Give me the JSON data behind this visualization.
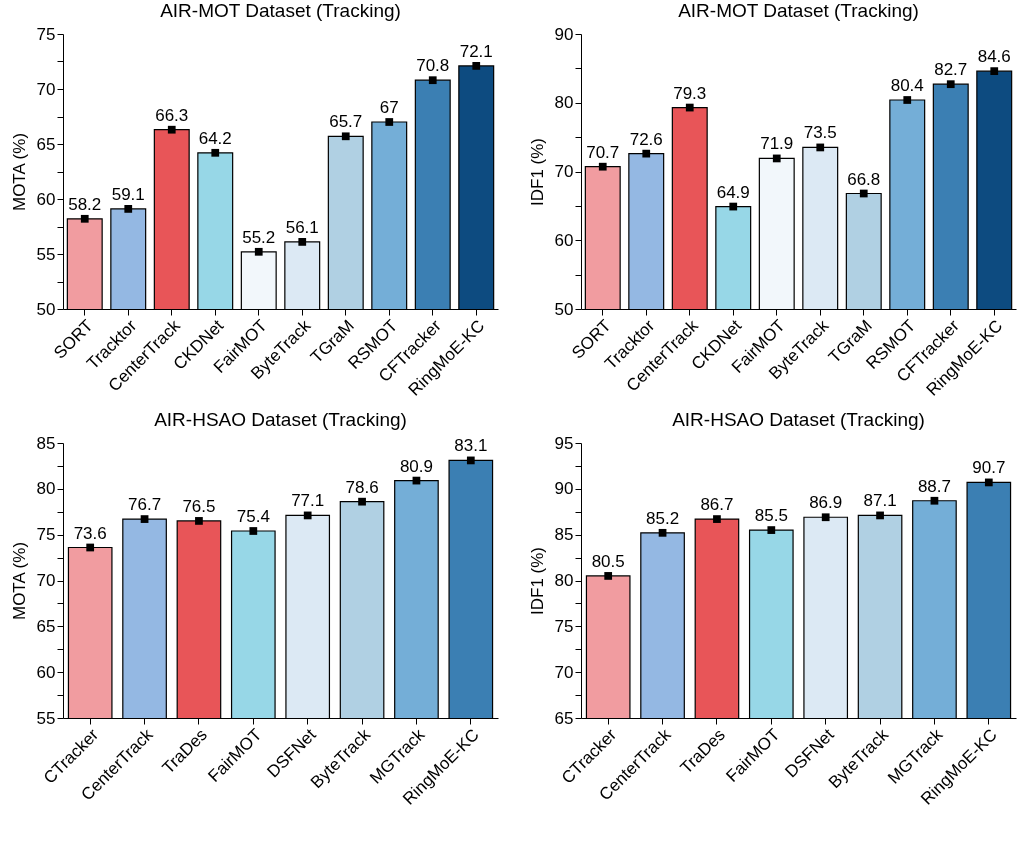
{
  "chart_data": [
    {
      "type": "bar",
      "title": "AIR-MOT Dataset (Tracking)",
      "ylabel": "MOTA (%)",
      "categories": [
        "SORT",
        "Tracktor",
        "CenterTrack",
        "CKDNet",
        "FairMOT",
        "ByteTrack",
        "TGraM",
        "RSMOT",
        "CFTracker",
        "RingMoE-KC"
      ],
      "series": [
        {
          "type": "bar",
          "colors": [
            "#f19ca0",
            "#94b8e3",
            "#e85558",
            "#97d7e7",
            "#f2f7fb",
            "#dce9f4",
            "#b0d0e3",
            "#74aed7",
            "#3b7fb3",
            "#0d4b80"
          ],
          "values": [
            58.2,
            59.1,
            66.3,
            64.2,
            55.2,
            56.1,
            65.7,
            67,
            70.8,
            72.1
          ],
          "value_labels": [
            "58.2",
            "59.1",
            "66.3",
            "64.2",
            "55.2",
            "56.1",
            "65.7",
            "67",
            "70.8",
            "72.1"
          ]
        },
        {
          "type": "scatter",
          "marker": "square",
          "color": "#000000",
          "x": [
            "SORT",
            "Tracktor",
            "CenterTrack",
            "CKDNet",
            "FairMOT",
            "ByteTrack",
            "TGraM",
            "RSMOT",
            "CFTracker",
            "RingMoE-KC"
          ],
          "values": [
            58.2,
            59.1,
            66.3,
            64.2,
            55.2,
            56.1,
            65.7,
            67,
            70.8,
            72.1
          ]
        }
      ],
      "ylim": [
        50,
        75
      ],
      "yticks": [
        50,
        {
          "value": 52.5,
          "label": null
        },
        55,
        {
          "value": 57.5,
          "label": null
        },
        60,
        {
          "value": 62.5,
          "label": null
        },
        65,
        {
          "value": 67.5,
          "label": null
        },
        70,
        {
          "value": 72.5,
          "label": null
        },
        75
      ]
    },
    {
      "type": "bar",
      "title": "AIR-MOT Dataset (Tracking)",
      "ylabel": "IDF1 (%)",
      "categories": [
        "SORT",
        "Tracktor",
        "CenterTrack",
        "CKDNet",
        "FairMOT",
        "ByteTrack",
        "TGraM",
        "RSMOT",
        "CFTracker",
        "RingMoE-KC"
      ],
      "series": [
        {
          "type": "bar",
          "colors": [
            "#f19ca0",
            "#94b8e3",
            "#e85558",
            "#97d7e7",
            "#f2f7fb",
            "#dce9f4",
            "#b0d0e3",
            "#74aed7",
            "#3b7fb3",
            "#0d4b80"
          ],
          "values": [
            70.7,
            72.6,
            79.3,
            64.9,
            71.9,
            73.5,
            66.8,
            80.4,
            82.7,
            84.6
          ],
          "value_labels": [
            "70.7",
            "72.6",
            "79.3",
            "64.9",
            "71.9",
            "73.5",
            "66.8",
            "80.4",
            "82.7",
            "84.6"
          ]
        },
        {
          "type": "scatter",
          "marker": "square",
          "color": "#000000",
          "x": [
            "SORT",
            "Tracktor",
            "CenterTrack",
            "CKDNet",
            "FairMOT",
            "ByteTrack",
            "TGraM",
            "RSMOT",
            "CFTracker",
            "RingMoE-KC"
          ],
          "values": [
            70.7,
            72.6,
            79.3,
            64.9,
            71.9,
            73.5,
            66.8,
            80.4,
            82.7,
            84.6
          ]
        }
      ],
      "ylim": [
        50,
        90
      ],
      "yticks": [
        50,
        {
          "value": 55,
          "label": null
        },
        60,
        {
          "value": 65,
          "label": null
        },
        70,
        {
          "value": 75,
          "label": null
        },
        80,
        {
          "value": 85,
          "label": null
        },
        90
      ]
    },
    {
      "type": "bar",
      "title": "AIR-HSAO Dataset (Tracking)",
      "ylabel": "MOTA (%)",
      "categories": [
        "CTracker",
        "CenterTrack",
        "TraDes",
        "FairMOT",
        "DSFNet",
        "ByteTrack",
        "MGTrack",
        "RingMoE-KC"
      ],
      "series": [
        {
          "type": "bar",
          "colors": [
            "#f19ca0",
            "#94b8e3",
            "#e85558",
            "#97d7e7",
            "#dce9f4",
            "#b0d0e3",
            "#74aed7",
            "#3b7fb3"
          ],
          "values": [
            73.6,
            76.7,
            76.5,
            75.4,
            77.1,
            78.6,
            80.9,
            83.1
          ],
          "value_labels": [
            "73.6",
            "76.7",
            "76.5",
            "75.4",
            "77.1",
            "78.6",
            "80.9",
            "83.1"
          ]
        },
        {
          "type": "scatter",
          "marker": "square",
          "color": "#000000",
          "x": [
            "CTracker",
            "CenterTrack",
            "TraDes",
            "FairMOT",
            "DSFNet",
            "ByteTrack",
            "MGTrack",
            "RingMoE-KC"
          ],
          "values": [
            73.6,
            76.7,
            76.5,
            75.4,
            77.1,
            78.6,
            80.9,
            83.1
          ]
        }
      ],
      "ylim": [
        55,
        85
      ],
      "yticks": [
        55,
        {
          "value": 57.5,
          "label": null
        },
        60,
        {
          "value": 62.5,
          "label": null
        },
        65,
        {
          "value": 67.5,
          "label": null
        },
        70,
        {
          "value": 72.5,
          "label": null
        },
        75,
        {
          "value": 77.5,
          "label": null
        },
        80,
        {
          "value": 82.5,
          "label": null
        },
        85
      ]
    },
    {
      "type": "bar",
      "title": "AIR-HSAO Dataset (Tracking)",
      "ylabel": "IDF1 (%)",
      "categories": [
        "CTracker",
        "CenterTrack",
        "TraDes",
        "FairMOT",
        "DSFNet",
        "ByteTrack",
        "MGTrack",
        "RingMoE-KC"
      ],
      "series": [
        {
          "type": "bar",
          "colors": [
            "#f19ca0",
            "#94b8e3",
            "#e85558",
            "#97d7e7",
            "#dce9f4",
            "#b0d0e3",
            "#74aed7",
            "#3b7fb3"
          ],
          "values": [
            80.5,
            85.2,
            86.7,
            85.5,
            86.9,
            87.1,
            88.7,
            90.7
          ],
          "value_labels": [
            "80.5",
            "85.2",
            "86.7",
            "85.5",
            "86.9",
            "87.1",
            "88.7",
            "90.7"
          ]
        },
        {
          "type": "scatter",
          "marker": "square",
          "color": "#000000",
          "x": [
            "CTracker",
            "CenterTrack",
            "TraDes",
            "FairMOT",
            "DSFNet",
            "ByteTrack",
            "MGTrack",
            "RingMoE-KC"
          ],
          "values": [
            80.5,
            85.2,
            86.7,
            85.5,
            86.9,
            87.1,
            88.7,
            90.7
          ]
        }
      ],
      "ylim": [
        65,
        95
      ],
      "yticks": [
        65,
        {
          "value": 67.5,
          "label": null
        },
        70,
        {
          "value": 72.5,
          "label": null
        },
        75,
        {
          "value": 77.5,
          "label": null
        },
        80,
        {
          "value": 82.5,
          "label": null
        },
        85,
        {
          "value": 87.5,
          "label": null
        },
        90,
        {
          "value": 92.5,
          "label": null
        },
        95
      ]
    }
  ]
}
